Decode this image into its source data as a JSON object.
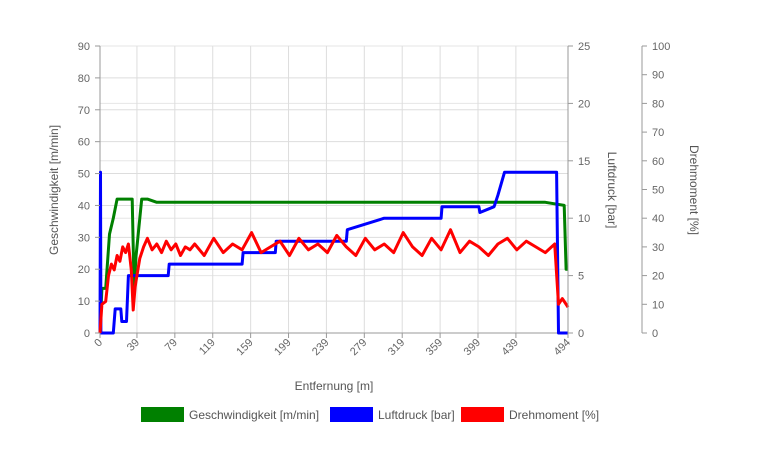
{
  "chart_data": {
    "type": "line",
    "xlabel": "Entfernung [m]",
    "x_ticks": [
      "0",
      "39",
      "79",
      "119",
      "159",
      "199",
      "239",
      "279",
      "319",
      "359",
      "399",
      "439",
      "494"
    ],
    "xlim": [
      0,
      494
    ],
    "axes": {
      "left": {
        "label": "Geschwindigkeit [m/min]",
        "min": 0,
        "max": 90,
        "ticks": [
          0,
          10,
          20,
          30,
          40,
          50,
          60,
          70,
          80,
          90
        ]
      },
      "right1": {
        "label": "Luftdruck [bar]",
        "min": 0,
        "max": 25,
        "ticks": [
          0,
          5,
          10,
          15,
          20,
          25
        ]
      },
      "right2": {
        "label": "Drehmoment [%]",
        "min": 0,
        "max": 100,
        "ticks": [
          0,
          10,
          20,
          30,
          40,
          50,
          60,
          70,
          80,
          90,
          100
        ]
      }
    },
    "grid": true,
    "legend_position": "bottom",
    "series": [
      {
        "name": "Geschwindigkeit [m/min]",
        "axis": "left",
        "color": "#008000",
        "x": [
          0,
          2,
          6,
          10,
          14,
          18,
          22,
          26,
          30,
          34,
          36,
          38,
          40,
          44,
          50,
          60,
          80,
          100,
          150,
          200,
          221,
          224,
          250,
          300,
          350,
          400,
          450,
          470,
          490,
          492,
          494
        ],
        "y": [
          0,
          14,
          14,
          31,
          36,
          42,
          42,
          42,
          42,
          42,
          14,
          24,
          30,
          42,
          42,
          41,
          41,
          41,
          41,
          41,
          41,
          41,
          41,
          41,
          41,
          41,
          41,
          41,
          40,
          20,
          20
        ]
      },
      {
        "name": "Luftdruck [bar]",
        "axis": "right1",
        "color": "#0000ff",
        "x": [
          0,
          0.5,
          1,
          14,
          16,
          22,
          23,
          28,
          30,
          42,
          72,
          73,
          150,
          151,
          185,
          186,
          260,
          261,
          300,
          360,
          361,
          400,
          401,
          416,
          420,
          427,
          428,
          460,
          470,
          482,
          484,
          486,
          494
        ],
        "y": [
          0,
          14,
          0,
          0,
          2.1,
          2.1,
          1,
          1,
          5,
          5,
          5,
          6,
          6,
          7,
          7,
          8,
          8,
          9,
          10,
          10,
          11,
          11,
          10.5,
          11,
          12,
          14,
          14,
          14,
          14,
          14,
          0,
          0,
          0
        ]
      },
      {
        "name": "Drehmoment [%]",
        "axis": "right2",
        "color": "#ff0000",
        "x": [
          0,
          2,
          6,
          9,
          12,
          15,
          18,
          21,
          24,
          27,
          30,
          33,
          35,
          37,
          39,
          42,
          46,
          50,
          55,
          60,
          65,
          70,
          75,
          80,
          85,
          90,
          95,
          100,
          110,
          120,
          130,
          140,
          150,
          160,
          170,
          180,
          190,
          200,
          210,
          220,
          230,
          240,
          250,
          260,
          270,
          280,
          290,
          300,
          310,
          320,
          330,
          340,
          350,
          360,
          370,
          380,
          390,
          400,
          410,
          420,
          430,
          440,
          450,
          460,
          470,
          480,
          484,
          488,
          490,
          494
        ],
        "y": [
          0,
          10,
          11,
          20,
          24,
          22,
          27,
          25,
          30,
          28,
          31,
          22,
          8,
          16,
          20,
          26,
          30,
          33,
          29,
          31,
          28,
          32,
          29,
          31,
          27,
          30,
          29,
          31,
          27,
          33,
          28,
          31,
          29,
          35,
          28,
          30,
          32,
          27,
          33,
          29,
          31,
          28,
          34,
          30,
          27,
          33,
          29,
          31,
          28,
          35,
          30,
          27,
          33,
          29,
          36,
          28,
          32,
          30,
          27,
          31,
          33,
          29,
          32,
          30,
          28,
          31,
          10,
          12,
          11,
          9
        ]
      }
    ]
  },
  "legend": {
    "items": [
      {
        "label": "Geschwindigkeit [m/min]",
        "color": "#008000"
      },
      {
        "label": "Luftdruck [bar]",
        "color": "#0000ff"
      },
      {
        "label": "Drehmoment [%]",
        "color": "#ff0000"
      }
    ]
  }
}
